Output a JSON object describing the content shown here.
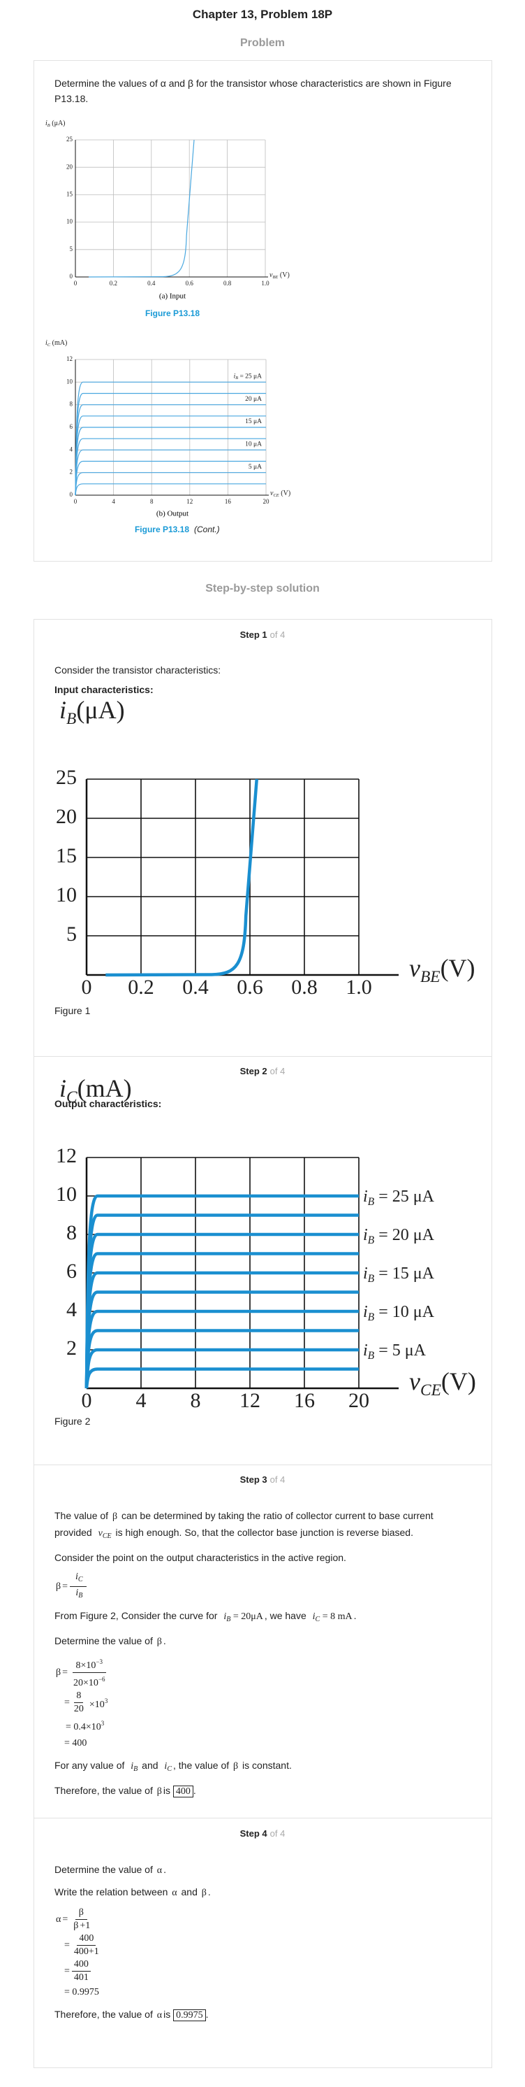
{
  "header": {
    "title": "Chapter 13, Problem 18P",
    "section": "Problem"
  },
  "problem": {
    "text": "Determine the values of α and β for the transistor whose characteristics are shown in Figure P13.18.",
    "figure_input": {
      "y_label": {
        "var": "i",
        "sub": "B",
        "rest": " (μA)"
      },
      "x_label": {
        "var": "v",
        "sub": "BE",
        "rest": " (V)"
      },
      "x_ticks": [
        "0",
        "0.2",
        "0.4",
        "0.6",
        "0.8",
        "1.0"
      ],
      "y_ticks": [
        "0",
        "5",
        "10",
        "15",
        "20",
        "25"
      ],
      "caption": "(a) Input",
      "figure": "Figure P13.18"
    },
    "figure_output": {
      "y_label": {
        "var": "i",
        "sub": "C",
        "rest": " (mA)"
      },
      "x_label": {
        "var": "v",
        "sub": "CE",
        "rest": " (V)"
      },
      "x_ticks": [
        "0",
        "4",
        "8",
        "12",
        "16",
        "20"
      ],
      "y_ticks": [
        "0",
        "2",
        "4",
        "6",
        "8",
        "10",
        "12"
      ],
      "curve_labels": [
        {
          "var": "i",
          "sub": "B",
          "rest": " = 25 μA"
        },
        "20 μA",
        "15 μA",
        "10 μA",
        "5 μA"
      ],
      "caption": "(b) Output",
      "figure": "Figure P13.18",
      "cont": "(Cont.)"
    }
  },
  "solution_heading": "Step-by-step solution",
  "steps": [
    {
      "label": "Step 1",
      "of": "of 4",
      "intro": "Consider the transistor characteristics:",
      "heading": "Input characteristics:",
      "chart": {
        "y_label": {
          "var": "i",
          "sub": "B",
          "rest": "(μA)"
        },
        "x_label": {
          "var": "v",
          "sub": "BE",
          "rest": "(V)"
        },
        "x_ticks": [
          "0",
          "0.2",
          "0.4",
          "0.6",
          "0.8",
          "1.0"
        ],
        "y_ticks": [
          "5",
          "10",
          "15",
          "20",
          "25"
        ]
      },
      "caption": "Figure 1"
    },
    {
      "label": "Step 2",
      "of": "of 4",
      "heading": "Output characteristics:",
      "chart": {
        "y_label": {
          "var": "i",
          "sub": "C",
          "rest": "(mA)"
        },
        "x_label": {
          "var": "v",
          "sub": "CE",
          "rest": "(V)"
        },
        "x_ticks": [
          "0",
          "4",
          "8",
          "12",
          "16",
          "20"
        ],
        "y_ticks": [
          "2",
          "4",
          "6",
          "8",
          "10",
          "12"
        ],
        "curve_labels": [
          {
            "var": "i",
            "sub": "B",
            "rest": " = 25 μA"
          },
          {
            "var": "i",
            "sub": "B",
            "rest": " = 20 μA"
          },
          {
            "var": "i",
            "sub": "B",
            "rest": " = 15 μA"
          },
          {
            "var": "i",
            "sub": "B",
            "rest": " = 10 μA"
          },
          {
            "var": "i",
            "sub": "B",
            "rest": " = 5 μA"
          }
        ]
      },
      "caption": "Figure 2"
    },
    {
      "label": "Step 3",
      "of": "of 4",
      "blocks": [
        {
          "p": [
            "The value of ",
            {
              "m": "β"
            },
            " can be determined by taking the ratio of collector current to base current provided ",
            {
              "var": "v",
              "sub": "CE"
            },
            " is high enough. So, that the collector base junction is reverse biased."
          ]
        },
        {
          "p": [
            "Consider the point on the output characteristics in the active region."
          ]
        },
        {
          "eq": [
            [
              {
                "m": "β"
              },
              "=",
              {
                "frac": [
                  [
                    {
                      "var": "i",
                      "sub": "C"
                    }
                  ],
                  [
                    {
                      "var": "i",
                      "sub": "B"
                    }
                  ]
                ]
              }
            ]
          ]
        },
        {
          "p": [
            "From Figure 2, Consider the curve for ",
            {
              "var": "i",
              "sub": "B",
              "rest": " = 20μA"
            },
            ", we have ",
            {
              "var": "i",
              "sub": "C",
              "rest": " = 8 mA"
            },
            "."
          ]
        },
        {
          "p": [
            "Determine the value of ",
            {
              "m": "β"
            },
            "."
          ]
        },
        {
          "eq": [
            [
              {
                "m": "β"
              },
              "=",
              {
                "frac": [
                  [
                    {
                      "base": "8×10",
                      "sup": "−3"
                    }
                  ],
                  [
                    {
                      "base": "20×10",
                      "sup": "−6"
                    }
                  ]
                ]
              }
            ],
            [
              "=",
              {
                "frac": [
                  [
                    "8"
                  ],
                  [
                    "20"
                  ]
                ]
              },
              {
                "base": "×10",
                "sup": "3"
              }
            ],
            [
              {
                "base": "= 0.4×10",
                "sup": "3"
              }
            ],
            [
              "= 400"
            ]
          ]
        },
        {
          "p": [
            "For any value of ",
            {
              "var": "i",
              "sub": "B"
            },
            " and ",
            {
              "var": "i",
              "sub": "C"
            },
            ", the value of ",
            {
              "m": "β"
            },
            " is constant."
          ]
        },
        {
          "p": [
            "Therefore, the value of ",
            {
              "m": "β"
            },
            "is ",
            {
              "box": "400"
            },
            "."
          ]
        }
      ]
    },
    {
      "label": "Step 4",
      "of": "of 4",
      "blocks": [
        {
          "p": [
            "Determine the value of ",
            {
              "m": "α"
            },
            "."
          ]
        },
        {
          "p": [
            "Write the relation between ",
            {
              "m": "α"
            },
            " and ",
            {
              "m": "β"
            },
            "."
          ]
        },
        {
          "eq": [
            [
              {
                "m": "α"
              },
              "=",
              {
                "frac": [
                  [
                    {
                      "m": "β"
                    }
                  ],
                  [
                    {
                      "m": "β"
                    },
                    "+1"
                  ]
                ]
              }
            ],
            [
              "=",
              {
                "frac": [
                  [
                    "400"
                  ],
                  [
                    "400+1"
                  ]
                ]
              }
            ],
            [
              "=",
              {
                "frac": [
                  [
                    "400"
                  ],
                  [
                    "401"
                  ]
                ]
              }
            ],
            [
              "= 0.9975"
            ]
          ]
        },
        {
          "p": [
            "Therefore, the value of ",
            {
              "m": "α"
            },
            "is ",
            {
              "box": "0.9975"
            },
            "."
          ]
        }
      ]
    }
  ]
}
